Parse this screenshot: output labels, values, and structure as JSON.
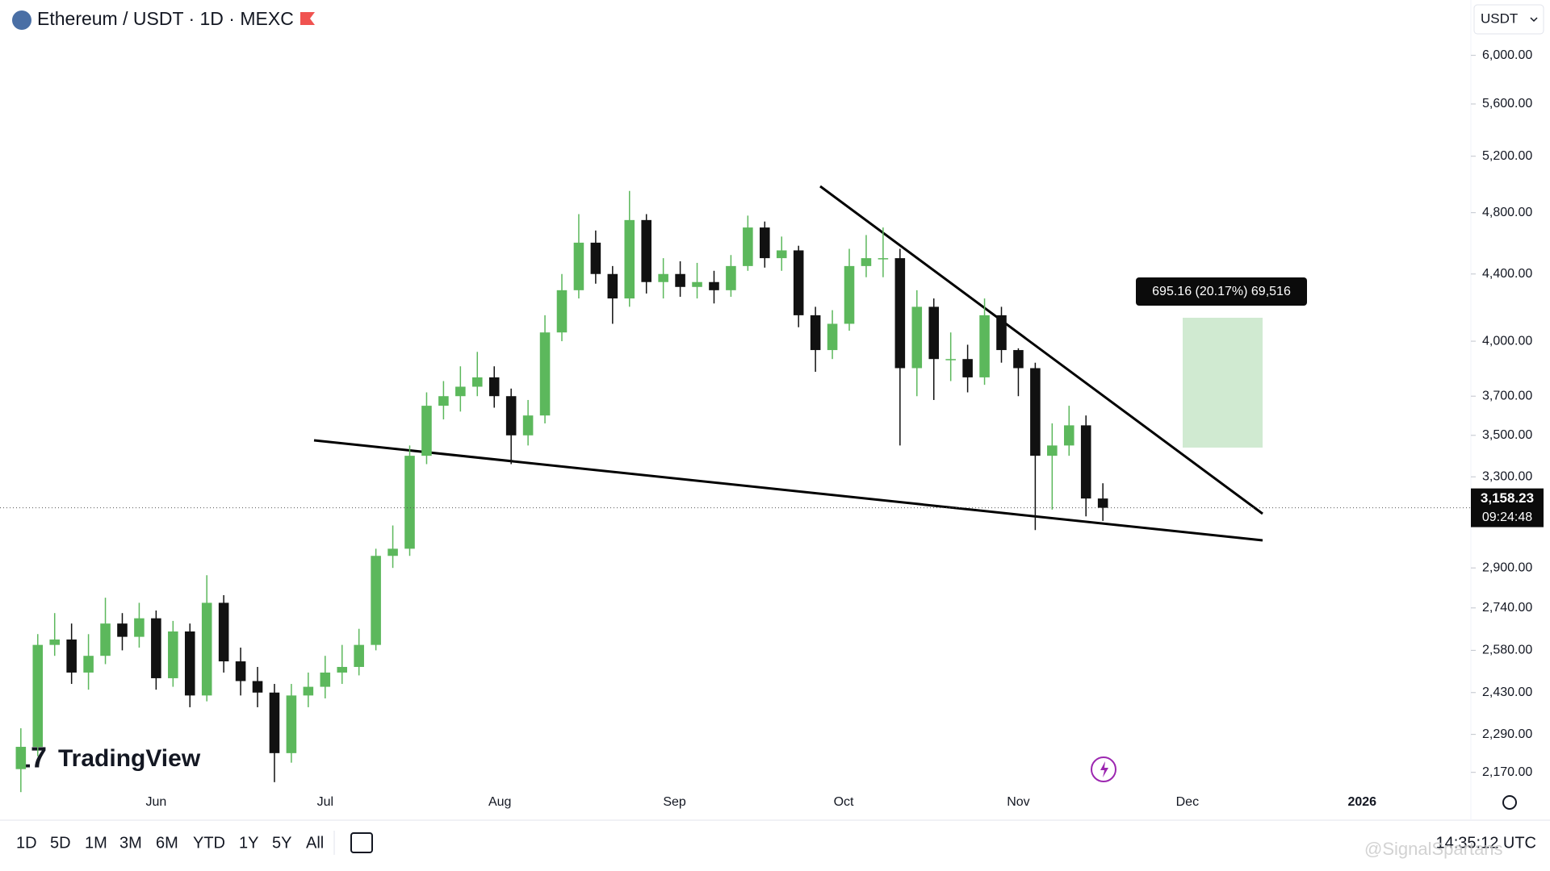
{
  "header": {
    "symbol": "Ethereum / USDT · 1D · MEXC",
    "currency": "USDT"
  },
  "chart_data": {
    "type": "candlestick",
    "log": true,
    "grid": false,
    "up_color": "#5cb85c",
    "down_color": "#111111",
    "xlim": [
      124.3,
      385.3
    ],
    "xticks": [
      {
        "value": 152,
        "label": "Jun"
      },
      {
        "value": 182,
        "label": "Jul"
      },
      {
        "value": 213,
        "label": "Aug"
      },
      {
        "value": 244,
        "label": "Sep"
      },
      {
        "value": 274,
        "label": "Oct"
      },
      {
        "value": 305,
        "label": "Nov"
      },
      {
        "value": 335,
        "label": "Dec"
      },
      {
        "value": 366,
        "label": "2026"
      }
    ],
    "ylim": [
      2125,
      6490
    ],
    "yticks": [
      {
        "value": 6000,
        "label": "6,000.00"
      },
      {
        "value": 5600,
        "label": "5,600.00"
      },
      {
        "value": 5200,
        "label": "5,200.00"
      },
      {
        "value": 4800,
        "label": "4,800.00"
      },
      {
        "value": 4400,
        "label": "4,400.00"
      },
      {
        "value": 4000,
        "label": "4,000.00"
      },
      {
        "value": 3700,
        "label": "3,700.00"
      },
      {
        "value": 3500,
        "label": "3,500.00"
      },
      {
        "value": 3300,
        "label": "3,300.00"
      },
      {
        "value": 2900,
        "label": "2,900.00"
      },
      {
        "value": 2740,
        "label": "2,740.00"
      },
      {
        "value": 2580,
        "label": "2,580.00"
      },
      {
        "value": 2430,
        "label": "2,430.00"
      },
      {
        "value": 2290,
        "label": "2,290.00"
      },
      {
        "value": 2170,
        "label": "2,170.00"
      }
    ],
    "x": [
      128,
      131,
      134,
      137,
      140,
      143,
      146,
      149,
      152,
      155,
      158,
      161,
      164,
      167,
      170,
      173,
      176,
      179,
      182,
      185,
      188,
      191,
      194,
      197,
      200,
      203,
      206,
      209,
      212,
      215,
      218,
      221,
      224,
      227,
      230,
      233,
      236,
      239,
      242,
      245,
      248,
      251,
      254,
      257,
      260,
      263,
      266,
      269,
      272,
      275,
      278,
      281,
      284,
      287,
      290,
      293,
      296,
      299,
      302,
      305,
      308,
      311,
      314,
      317,
      320
    ],
    "open": [
      2180,
      2250,
      2600,
      2620,
      2500,
      2560,
      2680,
      2630,
      2700,
      2480,
      2650,
      2420,
      2760,
      2540,
      2470,
      2430,
      2230,
      2420,
      2450,
      2500,
      2520,
      2600,
      2950,
      2980,
      3400,
      3650,
      3700,
      3750,
      3800,
      3700,
      3500,
      3600,
      4050,
      4300,
      4600,
      4400,
      4250,
      4750,
      4350,
      4400,
      4320,
      4350,
      4300,
      4450,
      4700,
      4500,
      4550,
      4150,
      3950,
      4100,
      4450,
      4500,
      4500,
      3850,
      4200,
      3900,
      3900,
      3800,
      4150,
      3950,
      3850,
      3400,
      3450,
      3550,
      3200
    ],
    "high": [
      2310,
      2640,
      2720,
      2680,
      2640,
      2780,
      2720,
      2760,
      2730,
      2690,
      2680,
      2870,
      2790,
      2590,
      2520,
      2460,
      2460,
      2500,
      2560,
      2600,
      2660,
      2980,
      3080,
      3450,
      3720,
      3780,
      3860,
      3940,
      3860,
      3740,
      3680,
      4150,
      4400,
      4790,
      4680,
      4450,
      4950,
      4790,
      4500,
      4480,
      4470,
      4420,
      4520,
      4780,
      4740,
      4640,
      4580,
      4200,
      4180,
      4560,
      4650,
      4700,
      4560,
      4300,
      4250,
      4050,
      3980,
      4250,
      4200,
      3960,
      3880,
      3560,
      3650,
      3600,
      3270
    ],
    "low": [
      2110,
      2220,
      2560,
      2460,
      2440,
      2530,
      2580,
      2590,
      2440,
      2450,
      2380,
      2400,
      2500,
      2420,
      2380,
      2140,
      2200,
      2380,
      2410,
      2460,
      2490,
      2580,
      2900,
      2950,
      3360,
      3580,
      3620,
      3700,
      3640,
      3360,
      3450,
      3560,
      4000,
      4250,
      4340,
      4100,
      4200,
      4280,
      4250,
      4260,
      4250,
      4220,
      4260,
      4420,
      4440,
      4420,
      4080,
      3830,
      3900,
      4060,
      4380,
      4380,
      3450,
      3700,
      3680,
      3780,
      3720,
      3760,
      3880,
      3700,
      3060,
      3150,
      3400,
      3120,
      3100
    ],
    "close": [
      2250,
      2600,
      2620,
      2500,
      2560,
      2680,
      2630,
      2700,
      2480,
      2650,
      2420,
      2760,
      2540,
      2470,
      2430,
      2230,
      2420,
      2450,
      2500,
      2520,
      2600,
      2950,
      2980,
      3400,
      3650,
      3700,
      3750,
      3800,
      3700,
      3500,
      3600,
      4050,
      4300,
      4600,
      4400,
      4250,
      4750,
      4350,
      4400,
      4320,
      4350,
      4300,
      4450,
      4700,
      4500,
      4550,
      4150,
      3950,
      4100,
      4450,
      4500,
      4500,
      3850,
      4200,
      3900,
      3900,
      3800,
      4150,
      3950,
      3850,
      3400,
      3450,
      3550,
      3200,
      3158.23
    ],
    "price_line": {
      "value": 3158.23,
      "label": "3,158.23",
      "countdown": "09:24:48"
    },
    "measure_label": "695.16 (20.17%) 69,516"
  },
  "toolbar": {
    "ranges": [
      "1D",
      "5D",
      "1M",
      "3M",
      "6M",
      "YTD",
      "1Y",
      "5Y",
      "All"
    ],
    "clock": "14:35:12 UTC"
  },
  "branding": {
    "logo": "TradingView",
    "watermark": "@SignalSpartans"
  }
}
